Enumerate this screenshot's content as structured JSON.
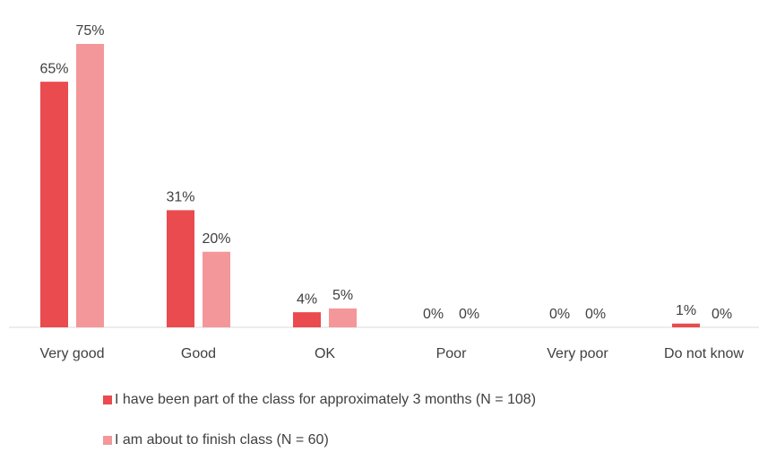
{
  "chart_data": {
    "type": "bar",
    "categories": [
      "Very good",
      "Good",
      "OK",
      "Poor",
      "Very poor",
      "Do not know"
    ],
    "series": [
      {
        "name": "I have been part of the class for approximately 3 months (N = 108)",
        "color": "#e94b4f",
        "values": [
          65,
          31,
          4,
          0,
          0,
          1
        ],
        "value_labels": [
          "65%",
          "31%",
          "4%",
          "0%",
          "0%",
          "1%"
        ]
      },
      {
        "name": "I am about to finish class (N = 60)",
        "color": "#f4979a",
        "values": [
          75,
          20,
          5,
          0,
          0,
          0
        ],
        "value_labels": [
          "75%",
          "20%",
          "5%",
          "0%",
          "0%",
          "0%"
        ]
      }
    ]
  }
}
